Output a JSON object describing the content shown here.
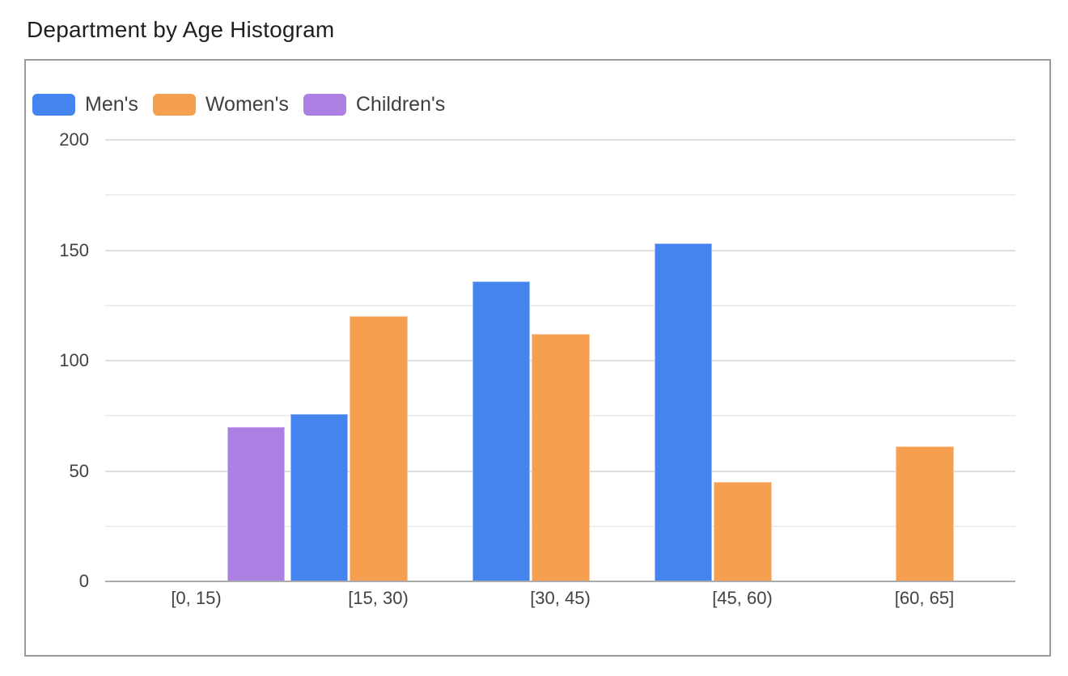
{
  "page_title": "Department by Age Histogram",
  "colors": {
    "mens": "#4484EE",
    "womens": "#F5A050",
    "childrens": "#AB80E2",
    "title_text": "#1f1f1f",
    "tick_text": "#424242",
    "legend_text": "#3c4043",
    "grid_major": "#dedede",
    "grid_minor": "#eeeeee",
    "axis_line": "#ababab",
    "frame_border": "#9b9b9b"
  },
  "chart_data": {
    "type": "bar",
    "title": "Department by Age Histogram",
    "xlabel": "",
    "ylabel": "",
    "categories": [
      "[0, 15)",
      "[15, 30)",
      "[30, 45)",
      "[45, 60)",
      "[60, 65]"
    ],
    "series": [
      {
        "name": "Men's",
        "color": "#4484EE",
        "values": [
          0,
          76,
          136,
          153,
          0
        ]
      },
      {
        "name": "Women's",
        "color": "#F5A050",
        "values": [
          0,
          120,
          112,
          45,
          61
        ]
      },
      {
        "name": "Children's",
        "color": "#AB80E2",
        "values": [
          70,
          0,
          0,
          0,
          0
        ]
      }
    ],
    "ylim": [
      0,
      200
    ],
    "yticks": [
      0,
      50,
      100,
      150,
      200
    ],
    "yticks_minor": [
      25,
      75,
      125,
      175
    ],
    "grid": true,
    "legend_position": "top-left"
  }
}
